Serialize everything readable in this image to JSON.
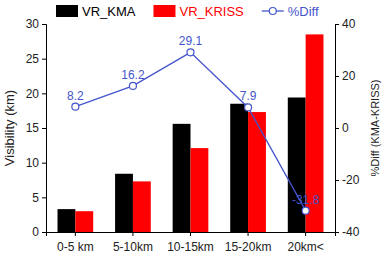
{
  "chart_data": {
    "type": "bar",
    "categories": [
      "0-5 km",
      "5-10km",
      "10-15km",
      "15-20km",
      "20km<"
    ],
    "series": [
      {
        "name": "VR_KMA",
        "color": "#000000",
        "type": "bar",
        "values": [
          3.3,
          8.4,
          15.6,
          18.5,
          19.4
        ]
      },
      {
        "name": "VR_KRISS",
        "color": "#ff0000",
        "type": "bar",
        "values": [
          3.0,
          7.3,
          12.1,
          17.3,
          28.5
        ]
      },
      {
        "name": "%Diff",
        "color": "#4455cc",
        "type": "line",
        "axis": "y2",
        "marker": "circle",
        "line_style": "solid",
        "data_labels": true,
        "values": [
          8.2,
          16.2,
          29.1,
          7.9,
          -31.8
        ]
      }
    ],
    "ylabel": "Visibility (km)",
    "y2label": "%Diff (KMA-KRISS)",
    "ylim": [
      0,
      30
    ],
    "yticks": [
      0,
      5,
      10,
      15,
      20,
      25,
      30
    ],
    "y2lim": [
      -40,
      40
    ],
    "y2ticks": [
      -40,
      -20,
      0,
      20,
      40
    ],
    "grid": false,
    "legend": "top"
  }
}
